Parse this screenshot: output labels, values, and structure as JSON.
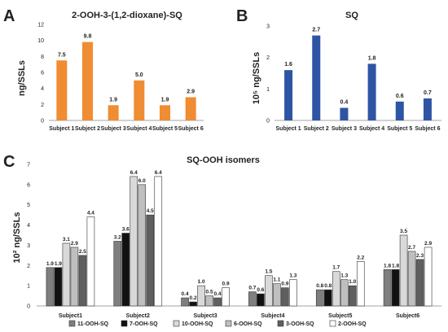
{
  "chart_data": [
    {
      "type": "bar",
      "panel": "A",
      "title": "2-OOH-3-(1,2-dioxane)-SQ",
      "ylabel": "ng/SSLs",
      "categories": [
        "Subject 1",
        "Subject 2",
        "Subject 3",
        "Subject 4",
        "Subject 5",
        "Subject 6"
      ],
      "values": [
        7.5,
        9.8,
        1.9,
        5.0,
        1.9,
        2.9
      ],
      "value_labels": [
        "7.5",
        "9.8",
        "1.9",
        "5.0",
        "1.9",
        "2.9"
      ],
      "ylim": [
        0,
        12
      ],
      "yticks": [
        "0",
        "2",
        "4",
        "6",
        "8",
        "10",
        "12"
      ],
      "color": "#f08c32",
      "grid": false
    },
    {
      "type": "bar",
      "panel": "B",
      "title": "SQ",
      "ylabel": "10⁵ ng/SSLs",
      "categories": [
        "Subject 1",
        "Subject 2",
        "Subject 3",
        "Subject 4",
        "Subject 5",
        "Subject 6"
      ],
      "values": [
        1.6,
        2.7,
        0.4,
        1.8,
        0.6,
        0.7
      ],
      "value_labels": [
        "1.6",
        "2.7",
        "0.4",
        "1.8",
        "0.6",
        "0.7"
      ],
      "ylim": [
        0,
        3
      ],
      "yticks": [
        "0",
        "1",
        "2",
        "3"
      ],
      "color": "#2e55a4",
      "grid": false
    },
    {
      "type": "bar",
      "panel": "C",
      "title": "SQ-OOH isomers",
      "ylabel": "10² ng/SSLs",
      "categories": [
        "Subject1",
        "Subject2",
        "Subject3",
        "Subject4",
        "Subject5",
        "Subject6"
      ],
      "ylim": [
        0,
        7
      ],
      "yticks": [
        "0",
        "1",
        "2",
        "3",
        "4",
        "5",
        "6",
        "7"
      ],
      "legend_position": "bottom",
      "grid": false,
      "series": [
        {
          "name": "11-OOH-SQ",
          "color": "#7f7f7f",
          "values": [
            1.9,
            3.2,
            0.4,
            0.7,
            0.8,
            1.8
          ],
          "labels": [
            "1.9",
            "3.2",
            "0.4",
            "0.7",
            "0.8",
            "1.8"
          ]
        },
        {
          "name": "7-OOH-SQ",
          "color": "#111111",
          "values": [
            1.9,
            3.6,
            0.2,
            0.6,
            0.8,
            1.8
          ],
          "labels": [
            "1.9",
            "3.6",
            "0.2",
            "0.6",
            "0.8",
            "1.8"
          ]
        },
        {
          "name": "10-OOH-SQ",
          "color": "#d9d9d9",
          "values": [
            3.1,
            6.4,
            1.0,
            1.5,
            1.7,
            3.5
          ],
          "labels": [
            "3.1",
            "6.4",
            "1.0",
            "1.5",
            "1.7",
            "3.5"
          ]
        },
        {
          "name": "6-OOH-SQ",
          "color": "#bfbfbf",
          "values": [
            2.9,
            6.0,
            0.5,
            1.1,
            1.3,
            2.7
          ],
          "labels": [
            "2.9",
            "6.0",
            "0.5",
            "1.1",
            "1.3",
            "2.7"
          ]
        },
        {
          "name": "3-OOH-SQ",
          "color": "#5f5f5f",
          "values": [
            2.5,
            4.5,
            0.4,
            0.9,
            1.0,
            2.3
          ],
          "labels": [
            "2.5",
            "4.5",
            "0.4",
            "0.9",
            "1.0",
            "2.3"
          ]
        },
        {
          "name": "2-OOH-SQ",
          "color": "#ffffff",
          "values": [
            4.4,
            6.4,
            0.9,
            1.3,
            2.2,
            2.9
          ],
          "labels": [
            "4.4",
            "6.4",
            "0.9",
            "1.3",
            "2.2",
            "2.9"
          ]
        }
      ]
    }
  ]
}
